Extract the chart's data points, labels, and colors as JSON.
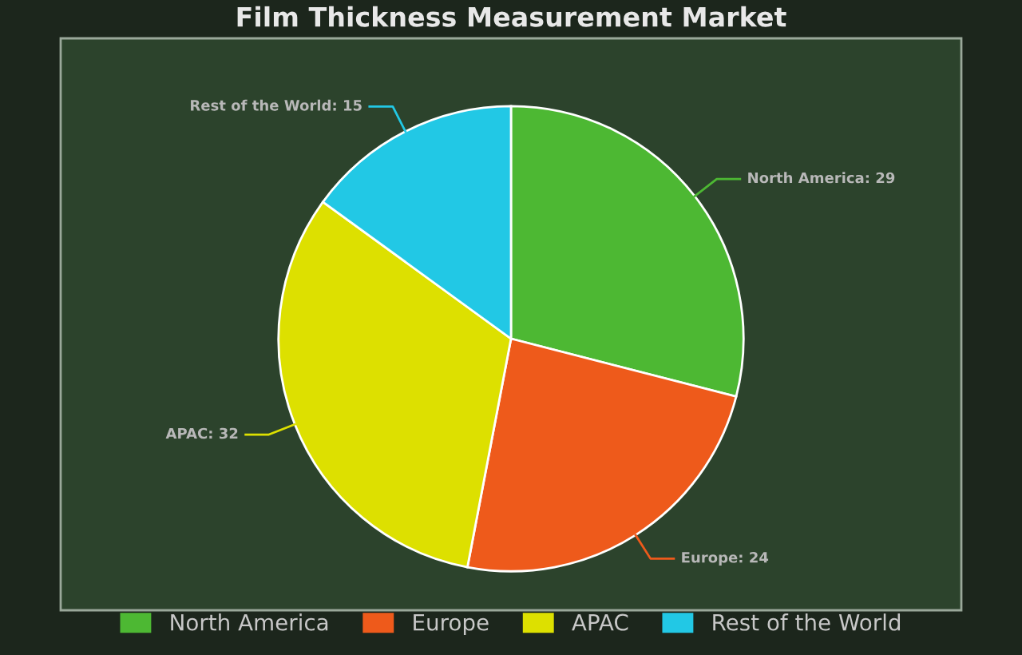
{
  "chart_data": {
    "type": "pie",
    "title": "Film Thickness Measurement Market",
    "categories": [
      "North America",
      "Europe",
      "APAC",
      "Rest of the World"
    ],
    "values": [
      29,
      24,
      32,
      15
    ],
    "colors": [
      "#4db833",
      "#ee5a1b",
      "#dde000",
      "#22c8e5"
    ],
    "value_labels": [
      "North America: 29",
      "Europe: 24",
      "APAC: 32",
      "Rest of the World: 15"
    ],
    "legend": "bottom"
  }
}
